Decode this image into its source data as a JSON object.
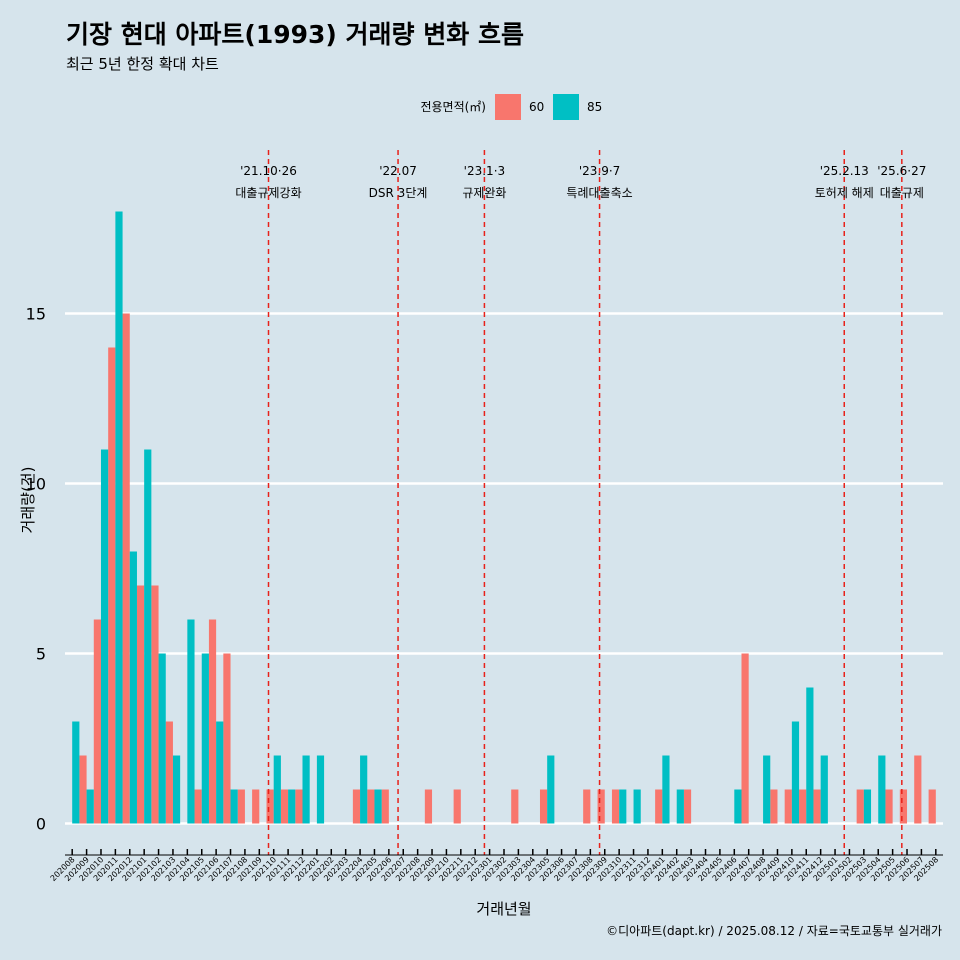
{
  "colors": {
    "background": "#d6e4ec",
    "s60": "#f8766d",
    "s85": "#00bfc4",
    "event_line": "#e8211a",
    "grid": "#ffffff"
  },
  "chart_data": {
    "type": "bar",
    "title": "기장 현대 아파트(1993) 거래량 변화 흐름",
    "subtitle": "최근 5년 한정 확대 차트",
    "xlabel": "거래년월",
    "ylabel": "거래량(건)",
    "legend_title": "전용면적(㎡)",
    "legend_position": "top",
    "caption": "©디아파트(dapt.kr) / 2025.08.12 / 자료=국토교통부 실거래가",
    "ylim": [
      0,
      18
    ],
    "yticks": [
      0,
      5,
      10,
      15
    ],
    "grid": true,
    "categories": [
      "202008",
      "202009",
      "202010",
      "202011",
      "202012",
      "202101",
      "202102",
      "202103",
      "202104",
      "202105",
      "202106",
      "202107",
      "202108",
      "202109",
      "202110",
      "202111",
      "202112",
      "202201",
      "202202",
      "202203",
      "202204",
      "202205",
      "202206",
      "202207",
      "202208",
      "202209",
      "202210",
      "202211",
      "202212",
      "202301",
      "202302",
      "202303",
      "202304",
      "202305",
      "202306",
      "202307",
      "202308",
      "202309",
      "202310",
      "202311",
      "202312",
      "202401",
      "202402",
      "202403",
      "202404",
      "202405",
      "202406",
      "202407",
      "202408",
      "202409",
      "202410",
      "202411",
      "202412",
      "202501",
      "202502",
      "202503",
      "202504",
      "202505",
      "202506",
      "202507",
      "202508"
    ],
    "series": [
      {
        "name": "60",
        "values": [
          0,
          2,
          6,
          14,
          15,
          7,
          7,
          3,
          0,
          1,
          6,
          5,
          1,
          1,
          1,
          1,
          1,
          0,
          0,
          0,
          1,
          1,
          1,
          0,
          0,
          1,
          0,
          1,
          0,
          0,
          0,
          1,
          0,
          1,
          0,
          0,
          1,
          1,
          1,
          0,
          0,
          1,
          0,
          1,
          0,
          0,
          0,
          5,
          0,
          1,
          1,
          1,
          1,
          0,
          0,
          1,
          0,
          1,
          1,
          2,
          1
        ]
      },
      {
        "name": "85",
        "values": [
          3,
          1,
          11,
          18,
          8,
          11,
          5,
          2,
          6,
          5,
          3,
          1,
          0,
          0,
          2,
          1,
          2,
          2,
          0,
          0,
          2,
          1,
          0,
          0,
          0,
          0,
          0,
          0,
          0,
          0,
          0,
          0,
          0,
          2,
          0,
          0,
          0,
          0,
          1,
          1,
          0,
          2,
          1,
          0,
          0,
          0,
          1,
          0,
          2,
          0,
          3,
          4,
          2,
          0,
          0,
          1,
          2,
          0,
          0,
          0,
          0
        ]
      }
    ],
    "events": [
      {
        "line1": "'21.10·26",
        "line2": "대출규제강화",
        "at": "202110"
      },
      {
        "line1": "'22.07",
        "line2": "DSR 3단계",
        "at": "202207"
      },
      {
        "line1": "'23.1·3",
        "line2": "규제완화",
        "at": "202301"
      },
      {
        "line1": "'23.9·7",
        "line2": "특례대출축소",
        "at": "202309"
      },
      {
        "line1": "'25.2.13",
        "line2": "토허제 해제",
        "at": "202502"
      },
      {
        "line1": "'25.6·27",
        "line2": "대출규제",
        "at": "202506"
      }
    ]
  }
}
